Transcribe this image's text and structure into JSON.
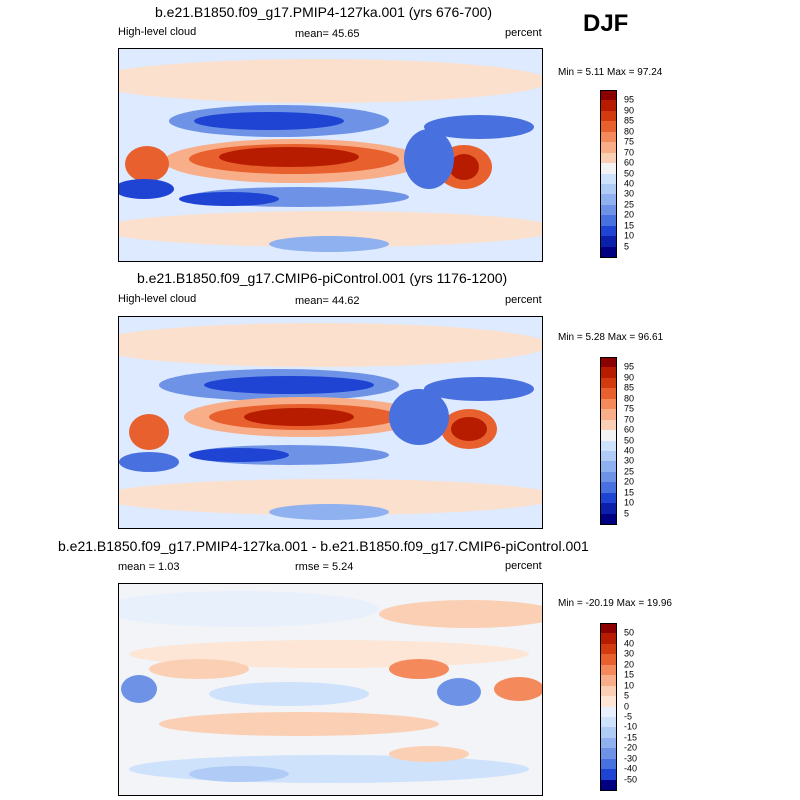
{
  "season": "DJF",
  "panels": [
    {
      "title": "b.e21.B1850.f09_g17.PMIP4-127ka.001 (yrs 676-700)",
      "left_label": "High-level cloud",
      "center_label": "mean=  45.65",
      "right_label": "percent",
      "minmax_label": "Min =   5.11 Max =  97.24"
    },
    {
      "title": "b.e21.B1850.f09_g17.CMIP6-piControl.001 (yrs 1176-1200)",
      "left_label": "High-level cloud",
      "center_label": "mean=  44.62",
      "right_label": "percent",
      "minmax_label": "Min =   5.28 Max =  96.61"
    },
    {
      "title": "b.e21.B1850.f09_g17.PMIP4-127ka.001 - b.e21.B1850.f09_g17.CMIP6-piControl.001",
      "left_label": "mean =   1.03",
      "center_label": "rmse =   5.24",
      "right_label": "percent",
      "minmax_label": "Min = -20.19 Max =  19.96"
    }
  ],
  "chart_data": [
    {
      "type": "heatmap",
      "title": "b.e21.B1850.f09_g17.PMIP4-127ka.001 (yrs 676-700)",
      "variable": "High-level cloud",
      "units": "percent",
      "mean": 45.65,
      "min": 5.11,
      "max": 97.24,
      "colorbar_levels": [
        95,
        90,
        85,
        80,
        75,
        70,
        60,
        50,
        40,
        30,
        25,
        20,
        15,
        10,
        5
      ]
    },
    {
      "type": "heatmap",
      "title": "b.e21.B1850.f09_g17.CMIP6-piControl.001 (yrs 1176-1200)",
      "variable": "High-level cloud",
      "units": "percent",
      "mean": 44.62,
      "min": 5.28,
      "max": 96.61,
      "colorbar_levels": [
        95,
        90,
        85,
        80,
        75,
        70,
        60,
        50,
        40,
        30,
        25,
        20,
        15,
        10,
        5
      ]
    },
    {
      "type": "heatmap",
      "title": "b.e21.B1850.f09_g17.PMIP4-127ka.001 - b.e21.B1850.f09_g17.CMIP6-piControl.001",
      "units": "percent",
      "mean": 1.03,
      "rmse": 5.24,
      "min": -20.19,
      "max": 19.96,
      "colorbar_levels": [
        50,
        40,
        30,
        20,
        15,
        10,
        5,
        0,
        -5,
        -10,
        -15,
        -20,
        -30,
        -40,
        -50
      ]
    }
  ],
  "colors": {
    "abs_scale": [
      "#8b0000",
      "#b71c00",
      "#d43a10",
      "#e8602e",
      "#f48a5c",
      "#f8ae88",
      "#fbcfb3",
      "#f3f3f3",
      "#cfe2fb",
      "#b0ccf6",
      "#8fb1ef",
      "#6e93e6",
      "#4870df",
      "#1f44d4",
      "#0b1fa8",
      "#000080"
    ],
    "diff_scale": [
      "#8b0000",
      "#b71c00",
      "#d43a10",
      "#e8602e",
      "#f48a5c",
      "#f8ae88",
      "#fbcfb3",
      "#fde6d6",
      "#e8f0fc",
      "#cfe2fb",
      "#b0ccf6",
      "#8fb1ef",
      "#6e93e6",
      "#4870df",
      "#1f44d4",
      "#000080"
    ]
  }
}
